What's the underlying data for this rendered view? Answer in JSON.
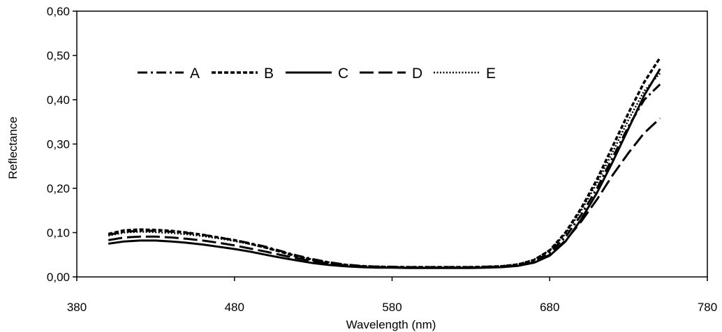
{
  "chart_data": {
    "type": "line",
    "title": "",
    "xlabel": "Wavelength (nm)",
    "ylabel": "Reflectance",
    "xlim": [
      380,
      780
    ],
    "ylim": [
      0,
      0.6
    ],
    "x_ticks": [
      "380",
      "480",
      "580",
      "680",
      "780"
    ],
    "y_ticks": [
      "0,00",
      "0,10",
      "0,20",
      "0,30",
      "0,40",
      "0,50",
      "0,60"
    ],
    "grid": false,
    "legend_position": "top-left",
    "series": [
      {
        "name": "A",
        "style": "dash-dot",
        "points": [
          [
            400,
            0.095
          ],
          [
            410,
            0.102
          ],
          [
            420,
            0.104
          ],
          [
            430,
            0.104
          ],
          [
            440,
            0.102
          ],
          [
            450,
            0.099
          ],
          [
            460,
            0.095
          ],
          [
            470,
            0.089
          ],
          [
            480,
            0.083
          ],
          [
            490,
            0.076
          ],
          [
            500,
            0.068
          ],
          [
            510,
            0.058
          ],
          [
            520,
            0.048
          ],
          [
            530,
            0.04
          ],
          [
            540,
            0.033
          ],
          [
            550,
            0.028
          ],
          [
            560,
            0.025
          ],
          [
            570,
            0.023
          ],
          [
            580,
            0.023
          ],
          [
            590,
            0.022
          ],
          [
            600,
            0.022
          ],
          [
            610,
            0.022
          ],
          [
            620,
            0.022
          ],
          [
            630,
            0.022
          ],
          [
            640,
            0.023
          ],
          [
            650,
            0.024
          ],
          [
            660,
            0.027
          ],
          [
            670,
            0.035
          ],
          [
            680,
            0.055
          ],
          [
            690,
            0.09
          ],
          [
            700,
            0.14
          ],
          [
            710,
            0.2
          ],
          [
            720,
            0.27
          ],
          [
            730,
            0.34
          ],
          [
            740,
            0.4
          ],
          [
            750,
            0.435
          ]
        ]
      },
      {
        "name": "B",
        "style": "short-dash",
        "points": [
          [
            400,
            0.097
          ],
          [
            410,
            0.105
          ],
          [
            420,
            0.107
          ],
          [
            430,
            0.106
          ],
          [
            440,
            0.104
          ],
          [
            450,
            0.1
          ],
          [
            460,
            0.095
          ],
          [
            470,
            0.089
          ],
          [
            480,
            0.083
          ],
          [
            490,
            0.075
          ],
          [
            500,
            0.066
          ],
          [
            510,
            0.056
          ],
          [
            520,
            0.046
          ],
          [
            530,
            0.038
          ],
          [
            540,
            0.032
          ],
          [
            550,
            0.027
          ],
          [
            560,
            0.024
          ],
          [
            570,
            0.023
          ],
          [
            580,
            0.022
          ],
          [
            590,
            0.022
          ],
          [
            600,
            0.022
          ],
          [
            610,
            0.022
          ],
          [
            620,
            0.022
          ],
          [
            630,
            0.022
          ],
          [
            640,
            0.023
          ],
          [
            650,
            0.024
          ],
          [
            660,
            0.028
          ],
          [
            670,
            0.038
          ],
          [
            680,
            0.06
          ],
          [
            690,
            0.1
          ],
          [
            700,
            0.155
          ],
          [
            710,
            0.22
          ],
          [
            720,
            0.295
          ],
          [
            730,
            0.37
          ],
          [
            740,
            0.44
          ],
          [
            750,
            0.495
          ]
        ]
      },
      {
        "name": "C",
        "style": "solid",
        "points": [
          [
            400,
            0.075
          ],
          [
            410,
            0.08
          ],
          [
            420,
            0.082
          ],
          [
            430,
            0.082
          ],
          [
            440,
            0.08
          ],
          [
            450,
            0.077
          ],
          [
            460,
            0.073
          ],
          [
            470,
            0.068
          ],
          [
            480,
            0.063
          ],
          [
            490,
            0.057
          ],
          [
            500,
            0.05
          ],
          [
            510,
            0.043
          ],
          [
            520,
            0.037
          ],
          [
            530,
            0.031
          ],
          [
            540,
            0.027
          ],
          [
            550,
            0.024
          ],
          [
            560,
            0.022
          ],
          [
            570,
            0.021
          ],
          [
            580,
            0.021
          ],
          [
            590,
            0.02
          ],
          [
            600,
            0.02
          ],
          [
            610,
            0.02
          ],
          [
            620,
            0.02
          ],
          [
            630,
            0.02
          ],
          [
            640,
            0.021
          ],
          [
            650,
            0.022
          ],
          [
            660,
            0.025
          ],
          [
            670,
            0.032
          ],
          [
            680,
            0.048
          ],
          [
            690,
            0.08
          ],
          [
            700,
            0.13
          ],
          [
            710,
            0.19
          ],
          [
            720,
            0.26
          ],
          [
            730,
            0.335
          ],
          [
            740,
            0.41
          ],
          [
            750,
            0.47
          ]
        ]
      },
      {
        "name": "D",
        "style": "long-dash",
        "points": [
          [
            400,
            0.083
          ],
          [
            410,
            0.089
          ],
          [
            420,
            0.091
          ],
          [
            430,
            0.091
          ],
          [
            440,
            0.089
          ],
          [
            450,
            0.086
          ],
          [
            460,
            0.082
          ],
          [
            470,
            0.077
          ],
          [
            480,
            0.071
          ],
          [
            490,
            0.064
          ],
          [
            500,
            0.057
          ],
          [
            510,
            0.049
          ],
          [
            520,
            0.042
          ],
          [
            530,
            0.035
          ],
          [
            540,
            0.03
          ],
          [
            550,
            0.026
          ],
          [
            560,
            0.024
          ],
          [
            570,
            0.022
          ],
          [
            580,
            0.022
          ],
          [
            590,
            0.021
          ],
          [
            600,
            0.021
          ],
          [
            610,
            0.021
          ],
          [
            620,
            0.021
          ],
          [
            630,
            0.021
          ],
          [
            640,
            0.022
          ],
          [
            650,
            0.023
          ],
          [
            660,
            0.026
          ],
          [
            670,
            0.033
          ],
          [
            680,
            0.05
          ],
          [
            690,
            0.082
          ],
          [
            700,
            0.125
          ],
          [
            710,
            0.175
          ],
          [
            720,
            0.23
          ],
          [
            730,
            0.28
          ],
          [
            740,
            0.325
          ],
          [
            750,
            0.358
          ]
        ]
      },
      {
        "name": "E",
        "style": "dotted",
        "points": [
          [
            400,
            0.093
          ],
          [
            410,
            0.1
          ],
          [
            420,
            0.102
          ],
          [
            430,
            0.101
          ],
          [
            440,
            0.099
          ],
          [
            450,
            0.096
          ],
          [
            460,
            0.092
          ],
          [
            470,
            0.087
          ],
          [
            480,
            0.081
          ],
          [
            490,
            0.074
          ],
          [
            500,
            0.066
          ],
          [
            510,
            0.057
          ],
          [
            520,
            0.047
          ],
          [
            530,
            0.039
          ],
          [
            540,
            0.033
          ],
          [
            550,
            0.028
          ],
          [
            560,
            0.025
          ],
          [
            570,
            0.024
          ],
          [
            580,
            0.023
          ],
          [
            590,
            0.022
          ],
          [
            600,
            0.022
          ],
          [
            610,
            0.022
          ],
          [
            620,
            0.022
          ],
          [
            630,
            0.022
          ],
          [
            640,
            0.023
          ],
          [
            650,
            0.025
          ],
          [
            660,
            0.029
          ],
          [
            670,
            0.039
          ],
          [
            680,
            0.06
          ],
          [
            690,
            0.097
          ],
          [
            700,
            0.15
          ],
          [
            710,
            0.212
          ],
          [
            720,
            0.282
          ],
          [
            730,
            0.355
          ],
          [
            740,
            0.42
          ],
          [
            750,
            0.46
          ]
        ]
      }
    ]
  }
}
